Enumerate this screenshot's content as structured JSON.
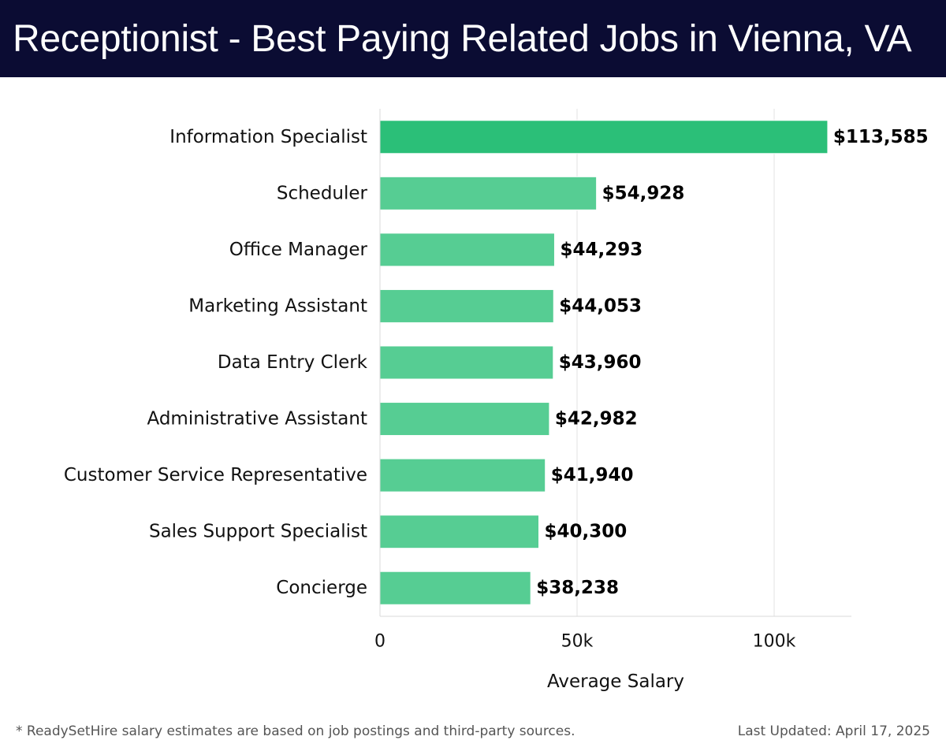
{
  "header": {
    "title": "Receptionist - Best Paying Related Jobs in Vienna, VA"
  },
  "chart_data": {
    "type": "bar",
    "orientation": "horizontal",
    "title": "Receptionist - Best Paying Related Jobs in Vienna, VA",
    "xlabel": "Average Salary",
    "ylabel": "",
    "categories": [
      "Information Specialist",
      "Scheduler",
      "Office Manager",
      "Marketing Assistant",
      "Data Entry Clerk",
      "Administrative Assistant",
      "Customer Service Representative",
      "Sales Support Specialist",
      "Concierge"
    ],
    "values": [
      113585,
      54928,
      44293,
      44053,
      43960,
      42982,
      41940,
      40300,
      38238
    ],
    "value_labels": [
      "$113,585",
      "$54,928",
      "$44,293",
      "$44,053",
      "$43,960",
      "$42,982",
      "$41,940",
      "$40,300",
      "$38,238"
    ],
    "xlim": [
      0,
      120000
    ],
    "xticks": [
      0,
      50000,
      100000
    ],
    "xtick_labels": [
      "0",
      "50k",
      "100k"
    ],
    "grid": {
      "vertical": true,
      "horizontal": false
    },
    "colors": {
      "highlight": "#2bbf78",
      "bar": "#56cd93"
    }
  },
  "footer": {
    "note": "* ReadySetHire salary estimates are based on job postings and third-party sources.",
    "updated": "Last Updated: April 17, 2025"
  }
}
